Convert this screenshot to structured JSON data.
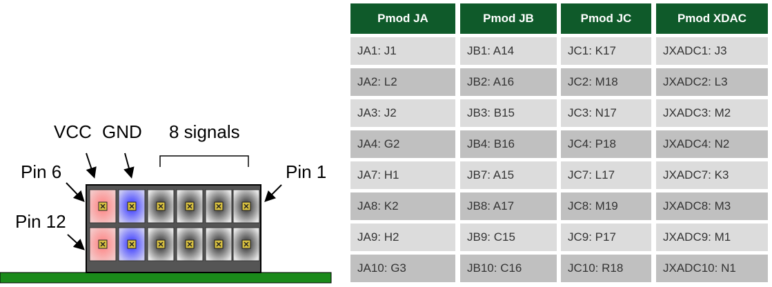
{
  "diagram": {
    "vcc": "VCC",
    "gnd": "GND",
    "signals": "8 signals",
    "pin6": "Pin 6",
    "pin1": "Pin 1",
    "pin12": "Pin 12"
  },
  "table": {
    "headers": [
      "Pmod JA",
      "Pmod JB",
      "Pmod JC",
      "Pmod XDAC"
    ],
    "rows": [
      [
        "JA1: J1",
        "JB1: A14",
        "JC1: K17",
        "JXADC1: J3"
      ],
      [
        "JA2: L2",
        "JB2: A16",
        "JC2: M18",
        "JXADC2: L3"
      ],
      [
        "JA3: J2",
        "JB3: B15",
        "JC3: N17",
        "JXADC3: M2"
      ],
      [
        "JA4: G2",
        "JB4: B16",
        "JC4: P18",
        "JXADC4: N2"
      ],
      [
        "JA7: H1",
        "JB7: A15",
        "JC7: L17",
        "JXADC7: K3"
      ],
      [
        "JA8: K2",
        "JB8: A17",
        "JC8: M19",
        "JXADC8: M3"
      ],
      [
        "JA9: H2",
        "JB9: C15",
        "JC9: P17",
        "JXADC9: M1"
      ],
      [
        "JA10: G3",
        "JB10: C16",
        "JC10: R18",
        "JXADC10: N1"
      ]
    ]
  }
}
